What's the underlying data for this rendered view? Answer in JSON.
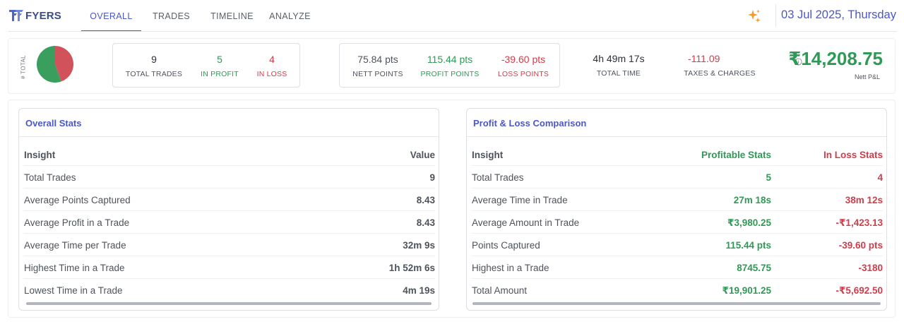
{
  "header": {
    "brand": "FYERS",
    "tabs": [
      {
        "label": "OVERALL",
        "active": true
      },
      {
        "label": "TRADES",
        "active": false
      },
      {
        "label": "TIMELINE",
        "active": false
      },
      {
        "label": "ANALYZE",
        "active": false
      }
    ],
    "sparkle_icon": "sparkle-icon",
    "date": "03 Jul 2025, Thursday"
  },
  "summary": {
    "total_axis_label": "# TOTAL",
    "pie": {
      "profit_fraction": 0.5556,
      "loss_fraction": 0.4444,
      "profit_color": "#3a9e5f",
      "loss_color": "#d2525c"
    },
    "total_trades": {
      "value": "9",
      "label": "TOTAL TRADES"
    },
    "in_profit": {
      "value": "5",
      "label": "IN PROFIT"
    },
    "in_loss": {
      "value": "4",
      "label": "IN LOSS"
    },
    "nett_points": {
      "value": "75.84 pts",
      "label": "NETT POINTS"
    },
    "profit_points": {
      "value": "115.44 pts",
      "label": "PROFIT POINTS"
    },
    "loss_points": {
      "value": "-39.60 pts",
      "label": "LOSS POINTS"
    },
    "total_time": {
      "value": "4h 49m 17s",
      "label": "TOTAL TIME"
    },
    "taxes": {
      "value": "-111.09",
      "label": "TAXES & CHARGES"
    },
    "nett_pl": {
      "value": "₹14,208.75",
      "label": "Nett P&L",
      "info_icon": "info-icon"
    }
  },
  "overall_stats": {
    "title": "Overall Stats",
    "columns": [
      "Insight",
      "Value"
    ],
    "rows": [
      {
        "label": "Total Trades",
        "value": "9"
      },
      {
        "label": "Average Points Captured",
        "value": "8.43"
      },
      {
        "label": "Average Profit in a Trade",
        "value": "8.43"
      },
      {
        "label": "Average Time per Trade",
        "value": "32m 9s"
      },
      {
        "label": "Highest Time in a Trade",
        "value": "1h 52m 6s"
      },
      {
        "label": "Lowest Time in a Trade",
        "value": "4m 19s"
      }
    ]
  },
  "pl_comparison": {
    "title": "Profit & Loss Comparison",
    "columns": [
      "Insight",
      "Profitable Stats",
      "In Loss Stats"
    ],
    "rows": [
      {
        "label": "Total Trades",
        "profit": "5",
        "loss": "4"
      },
      {
        "label": "Average Time in Trade",
        "profit": "27m 18s",
        "loss": "38m 12s"
      },
      {
        "label": "Average Amount in Trade",
        "profit": "₹3,980.25",
        "loss": "-₹1,423.13"
      },
      {
        "label": "Points Captured",
        "profit": "115.44 pts",
        "loss": "-39.60 pts"
      },
      {
        "label": "Highest in a Trade",
        "profit": "8745.75",
        "loss": "-3180"
      },
      {
        "label": "Total Amount",
        "profit": "₹19,901.25",
        "loss": "-₹5,692.50"
      }
    ]
  }
}
